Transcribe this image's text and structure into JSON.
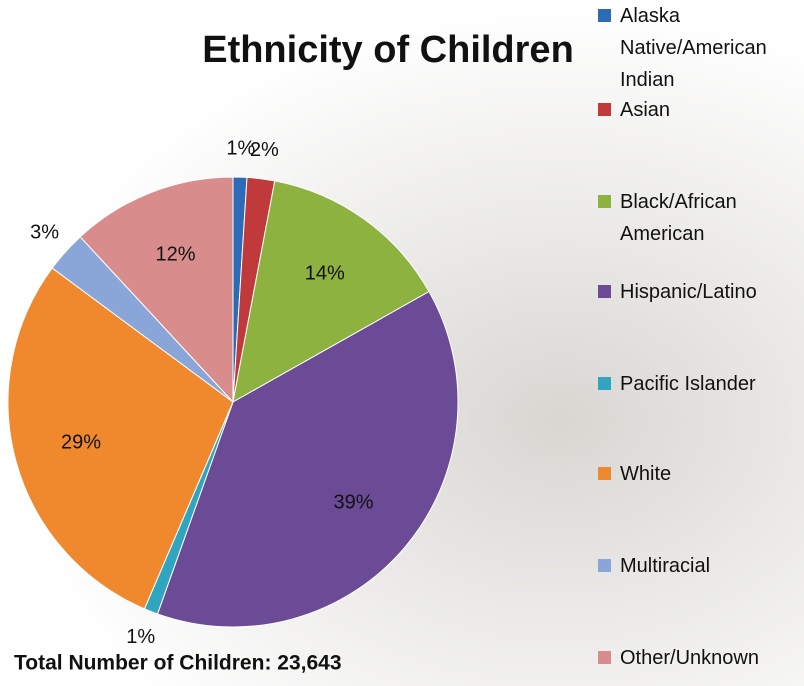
{
  "chart_data": {
    "type": "pie",
    "title": "Ethnicity of Children",
    "categories": [
      "Alaska Native/American Indian",
      "Asian",
      "Black/African American",
      "Hispanic/Latino",
      "Pacific Islander",
      "White",
      "Multiracial",
      "Other/Unknown"
    ],
    "values": [
      1,
      2,
      14,
      39,
      1,
      29,
      3,
      12
    ],
    "value_labels": [
      "1%",
      "2%",
      "14%",
      "39%",
      "1%",
      "29%",
      "3%",
      "12%"
    ],
    "colors": [
      "#2e6bb5",
      "#c0393b",
      "#8db240",
      "#6b4a96",
      "#2fa5c0",
      "#f0882e",
      "#8aa6d8",
      "#d98c8c"
    ],
    "note": "Total Number of Children: 23,643",
    "legend": "right"
  }
}
